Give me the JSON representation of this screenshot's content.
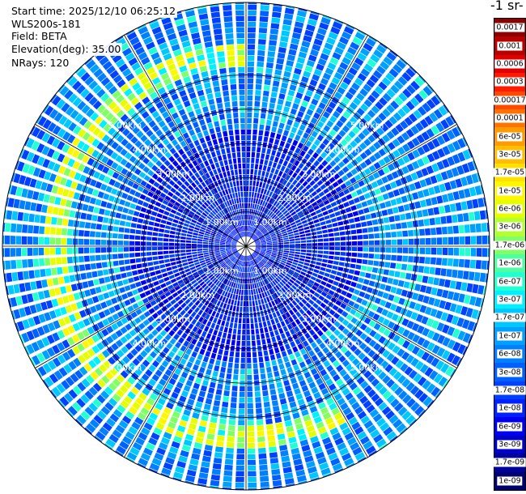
{
  "header": {
    "start_time": "Start time: 2025/12/10 06:25:12",
    "instrument": "WLS200s-181",
    "field": "Field: BETA",
    "elevation": "Elevation(deg): 35.00",
    "nrays": "NRays: 120"
  },
  "colorbar": {
    "units_label": "-1 sr-",
    "labels": [
      "0.0017",
      "0.001",
      "0.0006",
      "0.0003",
      "0.00017",
      "0.0001",
      "6e-05",
      "3e-05",
      "1.7e-05",
      "1e-05",
      "6e-06",
      "3e-06",
      "1.7e-06",
      "1e-06",
      "6e-07",
      "3e-07",
      "1.7e-07",
      "1e-07",
      "6e-08",
      "3e-08",
      "1.7e-08",
      "1e-08",
      "6e-09",
      "3e-09",
      "1.7e-09",
      "1e-09"
    ],
    "colors": [
      "#8b0000",
      "#b80000",
      "#e00000",
      "#ff1a00",
      "#ff4a00",
      "#ff7300",
      "#ff9a00",
      "#ffbf00",
      "#ffe000",
      "#fff700",
      "#e6ff00",
      "#b3ff33",
      "#80ff66",
      "#4dffa0",
      "#22ffd0",
      "#00f0ff",
      "#00c8ff",
      "#00a0ff",
      "#0080ff",
      "#0060ff",
      "#0040ff",
      "#0020ff",
      "#0000f0",
      "#0000c8",
      "#00009c",
      "#000070"
    ]
  },
  "chart_data": {
    "type": "heatmap",
    "projection": "polar-ppi",
    "field": "BETA",
    "elevation_deg": 35.0,
    "n_rays": 120,
    "range_rings_km": [
      1,
      2,
      3,
      4,
      5
    ],
    "ring_label_text": [
      "1.00km",
      "2.00km",
      "3.00km",
      "4.00km",
      "5.00km"
    ],
    "max_range_km": 6.9,
    "aerosol_layer": {
      "range_km": 5.5,
      "azimuth_span_deg": [
        90,
        300
      ]
    },
    "grid": true
  }
}
